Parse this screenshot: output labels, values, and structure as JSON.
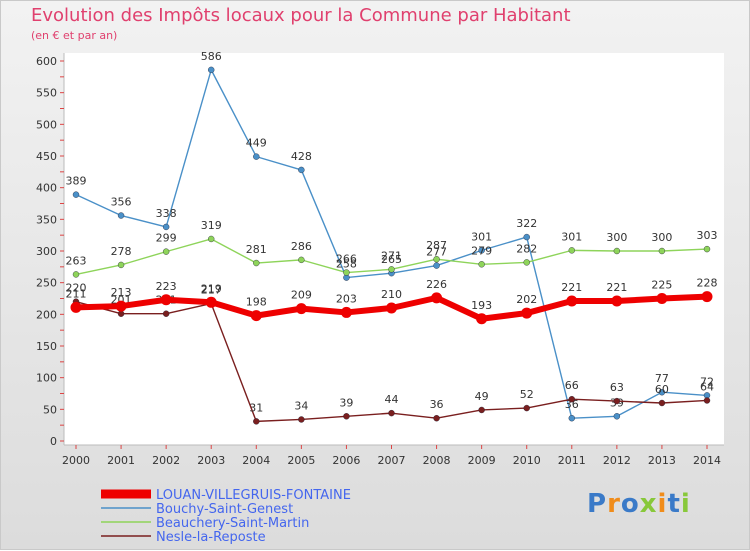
{
  "chart_data": {
    "type": "line",
    "title": "Evolution des Impôts locaux pour la Commune par Habitant",
    "subtitle": "(en € et par an)",
    "x": [
      "2000",
      "2001",
      "2002",
      "2003",
      "2004",
      "2005",
      "2006",
      "2007",
      "2008",
      "2009",
      "2010",
      "2011",
      "2012",
      "2013",
      "2014"
    ],
    "ylim": [
      0,
      600
    ],
    "yticks": [
      0,
      50,
      100,
      150,
      200,
      250,
      300,
      350,
      400,
      450,
      500,
      550,
      600
    ],
    "grid": false,
    "legend_position": "bottom-left",
    "series": [
      {
        "name": "Bouchy-Saint-Genest",
        "color": "#4a90c8",
        "width": 1.4,
        "values": [
          389,
          356,
          338,
          586,
          449,
          428,
          258,
          265,
          277,
          301,
          322,
          36,
          39,
          77,
          72
        ]
      },
      {
        "name": "Beauchery-Saint-Martin",
        "color": "#8ed45a",
        "width": 1.4,
        "values": [
          263,
          278,
          299,
          319,
          281,
          286,
          266,
          271,
          287,
          279,
          282,
          301,
          300,
          300,
          303
        ]
      },
      {
        "name": "Nesle-la-Reposte",
        "color": "#7a1f1f",
        "width": 1.4,
        "values": [
          220,
          201,
          201,
          217,
          31,
          34,
          39,
          44,
          36,
          49,
          52,
          66,
          63,
          60,
          64
        ]
      },
      {
        "name": "LOUAN-VILLEGRUIS-FONTAINE",
        "color": "#ee0000",
        "width": 6,
        "values": [
          211,
          213,
          223,
          219,
          198,
          209,
          203,
          210,
          226,
          193,
          202,
          221,
          221,
          225,
          228
        ]
      }
    ]
  },
  "logo": {
    "text": "Proxiti"
  }
}
